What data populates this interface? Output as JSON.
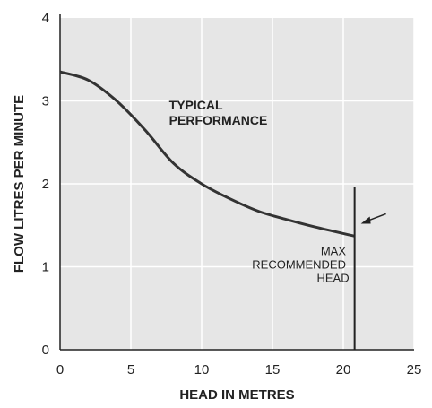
{
  "chart_data": {
    "type": "line",
    "title": "",
    "xlabel": "HEAD IN METRES",
    "ylabel": "FLOW LITRES PER MINUTE",
    "xlim": [
      0,
      25
    ],
    "ylim": [
      0,
      4
    ],
    "x_ticks": [
      0,
      5,
      10,
      15,
      20,
      25
    ],
    "y_ticks": [
      0,
      1,
      2,
      3,
      4
    ],
    "grid": true,
    "legend": "none",
    "series": [
      {
        "x": [
          0,
          2,
          4,
          6,
          8,
          10,
          12,
          14,
          16,
          18,
          20.8
        ],
        "values": [
          3.35,
          3.25,
          3.0,
          2.65,
          2.25,
          2.0,
          1.82,
          1.67,
          1.57,
          1.48,
          1.37
        ]
      }
    ],
    "max_head_x": 20.8,
    "annotations": {
      "typical_performance": [
        "TYPICAL",
        "PERFORMANCE"
      ],
      "max_recommended_head": [
        "MAX",
        "RECOMMENDED",
        "HEAD"
      ]
    },
    "colors": {
      "plot_background": "#e6e6e6",
      "grid": "#ffffff",
      "line": "#333333",
      "text": "#222222"
    }
  }
}
